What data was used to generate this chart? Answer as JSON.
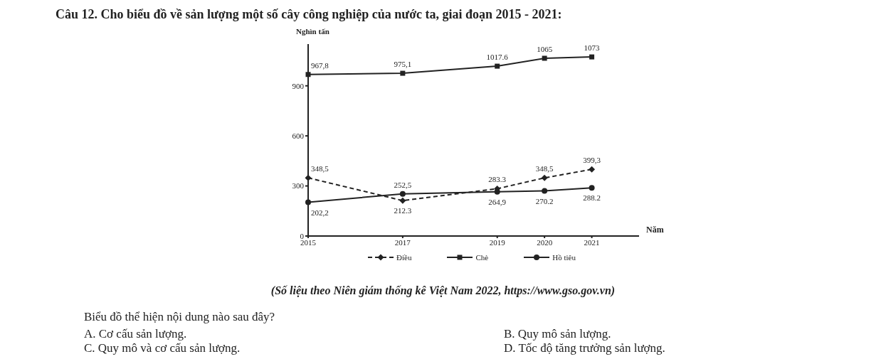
{
  "chart_data": {
    "type": "line",
    "title": "Câu 12. Cho biểu đồ về sản lượng một số cây công nghiệp của nước ta, giai đoạn 2015 - 2021:",
    "ylabel": "Nghìn tấn",
    "xlabel": "Năm",
    "x": [
      2015,
      2017,
      2019,
      2020,
      2021
    ],
    "series": [
      {
        "name": "Điều",
        "color": "#222222",
        "marker": "diamond",
        "line_style": "dashed",
        "values": [
          348.5,
          212.3,
          283.3,
          348.5,
          399.3
        ],
        "value_labels": [
          "348,5",
          "212.3",
          "283.3",
          "348,5",
          "399,3"
        ]
      },
      {
        "name": "Chè",
        "color": "#222222",
        "marker": "square",
        "line_style": "solid",
        "values": [
          967.8,
          975.1,
          1017.6,
          1065,
          1073
        ],
        "value_labels": [
          "967,8",
          "975,1",
          "1017.6",
          "1065",
          "1073"
        ]
      },
      {
        "name": "Hồ tiêu",
        "color": "#222222",
        "marker": "circle",
        "line_style": "solid",
        "values": [
          202.2,
          252.5,
          264.9,
          270.2,
          288.2
        ],
        "value_labels": [
          "202,2",
          "252,5",
          "264,9",
          "270.2",
          "288.2"
        ]
      }
    ],
    "xlim": [
      2015,
      2022
    ],
    "xticks": [
      2015,
      2017,
      2019,
      2020,
      2021
    ],
    "ylim": [
      0,
      1150
    ],
    "yticks": [
      0,
      300,
      600,
      900
    ],
    "grid": false,
    "legend": "bottom",
    "annotations": [
      "(Số liệu theo Niên giám thống kê Việt Nam 2022, https://www.gso.gov.vn)",
      "Biểu đồ thể hiện nội dung nào sau đây?",
      "A. Cơ cấu sản lượng.",
      "B. Quy mô sản lượng.",
      "C. Quy mô và cơ cấu sản lượng.",
      "D. Tốc độ tăng trưởng sản lượng."
    ]
  }
}
